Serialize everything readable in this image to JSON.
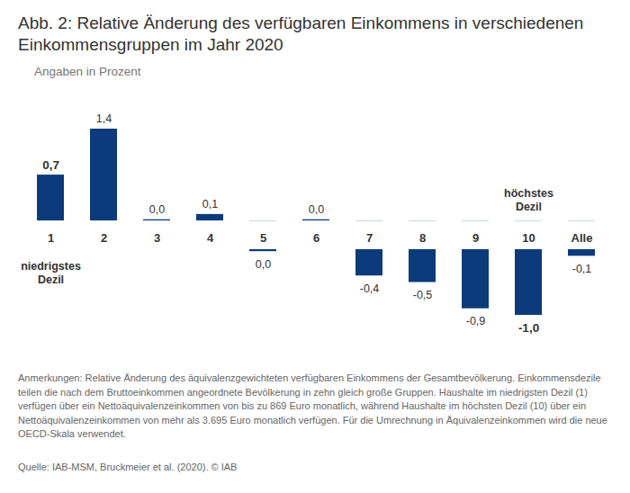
{
  "chart_data": {
    "type": "bar",
    "title": "Abb. 2: Relative Änderung des verfügbaren Einkommens in verschiedenen Einkommensgruppen im Jahr 2020",
    "subtitle": "Angaben in Prozent",
    "categories": [
      "1",
      "2",
      "3",
      "4",
      "5",
      "6",
      "7",
      "8",
      "9",
      "10",
      "Alle"
    ],
    "values": [
      0.7,
      1.4,
      0.02,
      0.1,
      -0.03,
      0.02,
      -0.4,
      -0.5,
      -0.9,
      -1.0,
      -0.1
    ],
    "value_labels": [
      "0,7",
      "1,4",
      "0,0",
      "0,1",
      "0,0",
      "0,0",
      "-0,4",
      "-0,5",
      "-0,9",
      "-1,0",
      "-0,1"
    ],
    "color": "#0b3b7a",
    "data_labels": true,
    "tick_labels": "x",
    "annotations": [
      {
        "text": "niedrigstes Dezil",
        "category": "1"
      },
      {
        "text": "höchstes Dezil",
        "category": "10"
      }
    ],
    "caption": "Anmerkungen: Relative Änderung des äquivalenzgewichteten verfügbaren Einkommens der Gesamtbevölkerung. Einkommensdezile teilen die nach dem Bruttoeinkommen angeordnete Bevölkerung in zehn gleich große Gruppen. Haushalte im niedrigsten Dezil (1) verfügen über ein Nettoäquivalenzeinkommen von bis zu 869 Euro monatlich, während Haushalte im höchsten Dezil (10) über ein Nettoäquivalenzeinkommen von mehr als 3.695 Euro monatlich verfügen. Für die Umrechnung in Äquivalenzeinkommen wird die neue OECD-Skala verwendet.",
    "source": "Quelle: IAB-MSM, Bruckmeier et al. (2020). © IAB"
  }
}
